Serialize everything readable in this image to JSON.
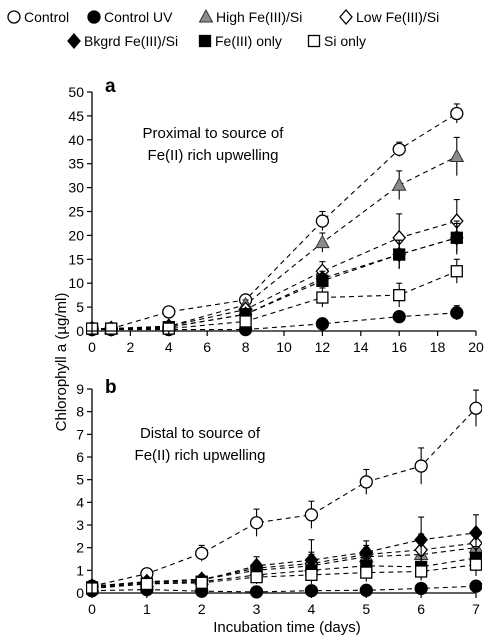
{
  "legend": {
    "entries": [
      {
        "label": "Control",
        "marker": "circle-open",
        "color": "#000000"
      },
      {
        "label": "Control UV",
        "marker": "circle-filled",
        "color": "#000000"
      },
      {
        "label": "High Fe(III)/Si",
        "marker": "triangle-gray",
        "color": "#8c8c8c"
      },
      {
        "label": "Low Fe(III)/Si",
        "marker": "diamond-open",
        "color": "#000000"
      },
      {
        "label": "Bkgrd Fe(III)/Si",
        "marker": "diamond-filled",
        "color": "#000000"
      },
      {
        "label": "Fe(III) only",
        "marker": "square-filled",
        "color": "#000000"
      },
      {
        "label": "Si only",
        "marker": "square-open",
        "color": "#000000"
      }
    ]
  },
  "shared_ylabel": "Chlorophyll a (µg/ml)",
  "chart_data": [
    {
      "type": "line",
      "panel_label": "a",
      "annotation": [
        "Proximal to source of",
        "Fe(II) rich upwelling"
      ],
      "xlabel": "",
      "ylabel": "Chlorophyll a (µg/ml)",
      "xlim": [
        0,
        20
      ],
      "ylim": [
        0,
        50
      ],
      "xticks": [
        "0",
        "2",
        "4",
        "6",
        "8",
        "10",
        "12",
        "14",
        "16",
        "18",
        "20"
      ],
      "yticks": [
        "0",
        "5",
        "10",
        "15",
        "20",
        "25",
        "30",
        "35",
        "40",
        "45",
        "50"
      ],
      "grid": false,
      "line_style": "dashed",
      "series": [
        {
          "name": "Control",
          "x": [
            0,
            1,
            4,
            8,
            12,
            16,
            19
          ],
          "y": [
            0.5,
            0.5,
            4,
            6.5,
            23,
            38,
            45.5
          ],
          "err": [
            0.5,
            0.5,
            1,
            1,
            2,
            1.5,
            2
          ]
        },
        {
          "name": "Control UV",
          "x": [
            0,
            1,
            4,
            8,
            12,
            16,
            19
          ],
          "y": [
            0.3,
            0.3,
            0.3,
            0.3,
            1.5,
            3,
            3.8
          ],
          "err": [
            0.3,
            0.3,
            0.3,
            0.3,
            1,
            1,
            1.5
          ]
        },
        {
          "name": "High Fe(III)/Si",
          "x": [
            0,
            1,
            4,
            8,
            12,
            16,
            19
          ],
          "y": [
            0.5,
            0.5,
            1,
            5.5,
            18.5,
            30.5,
            36.5
          ],
          "err": [
            0.5,
            0.5,
            0.5,
            1,
            2,
            3,
            4
          ]
        },
        {
          "name": "Low Fe(III)/Si",
          "x": [
            0,
            1,
            4,
            8,
            12,
            16,
            19
          ],
          "y": [
            0.5,
            0.5,
            1,
            4.5,
            12.5,
            19.5,
            23
          ],
          "err": [
            0.5,
            0.5,
            0.5,
            1,
            2,
            5,
            4.5
          ]
        },
        {
          "name": "Bkgrd Fe(III)/Si",
          "x": [
            0,
            1,
            4,
            8,
            12,
            16,
            19
          ],
          "y": [
            0.5,
            0.5,
            0.8,
            3.5,
            11,
            16,
            19.5
          ],
          "err": [
            0.5,
            0.5,
            0.5,
            1,
            1.5,
            3,
            3.5
          ]
        },
        {
          "name": "Fe(III) only",
          "x": [
            0,
            1,
            4,
            8,
            12,
            16,
            19
          ],
          "y": [
            0.5,
            0.5,
            0.8,
            3.5,
            10.5,
            16,
            19.5
          ],
          "err": [
            0.5,
            0.5,
            0.5,
            1,
            1.5,
            3,
            3
          ]
        },
        {
          "name": "Si only",
          "x": [
            0,
            1,
            4,
            8,
            12,
            16,
            19
          ],
          "y": [
            0.5,
            0.5,
            0.5,
            2,
            7,
            7.5,
            12.5
          ],
          "err": [
            0.5,
            0.5,
            0.5,
            1,
            2,
            2.5,
            2.5
          ]
        }
      ]
    },
    {
      "type": "line",
      "panel_label": "b",
      "annotation": [
        "Distal to source of",
        "Fe(II) rich upwelling"
      ],
      "xlabel": "Incubation time (days)",
      "ylabel": "Chlorophyll a (µg/ml)",
      "xlim": [
        0,
        7
      ],
      "ylim": [
        0,
        9
      ],
      "xticks": [
        "0",
        "1",
        "2",
        "3",
        "4",
        "5",
        "6",
        "7"
      ],
      "yticks": [
        "0",
        "1",
        "2",
        "3",
        "4",
        "5",
        "6",
        "7",
        "8",
        "9"
      ],
      "grid": false,
      "line_style": "dashed",
      "series": [
        {
          "name": "Control",
          "x": [
            0,
            1,
            2,
            3,
            4,
            5,
            6,
            7
          ],
          "y": [
            0.3,
            0.85,
            1.75,
            3.1,
            3.45,
            4.9,
            5.6,
            8.15
          ],
          "err": [
            0.15,
            0.2,
            0.35,
            0.6,
            0.6,
            0.55,
            0.8,
            0.8
          ]
        },
        {
          "name": "Control UV",
          "x": [
            0,
            1,
            2,
            3,
            4,
            5,
            6,
            7
          ],
          "y": [
            0.1,
            0.15,
            0.08,
            0.05,
            0.1,
            0.12,
            0.2,
            0.3
          ],
          "err": [
            0.1,
            0.1,
            0.08,
            0.05,
            0.1,
            0.1,
            0.15,
            0.2
          ]
        },
        {
          "name": "High Fe(III)/Si",
          "x": [
            0,
            1,
            2,
            3,
            4,
            5,
            6,
            7
          ],
          "y": [
            0.3,
            0.5,
            0.6,
            1.0,
            1.2,
            1.6,
            1.7,
            2.0
          ],
          "err": [
            0.1,
            0.2,
            0.2,
            0.3,
            0.5,
            0.4,
            0.6,
            0.6
          ]
        },
        {
          "name": "Low Fe(III)/Si",
          "x": [
            0,
            1,
            2,
            3,
            4,
            5,
            6,
            7
          ],
          "y": [
            0.3,
            0.5,
            0.6,
            1.1,
            1.3,
            1.7,
            1.9,
            2.2
          ],
          "err": [
            0.1,
            0.2,
            0.2,
            0.3,
            0.5,
            0.4,
            0.7,
            0.6
          ]
        },
        {
          "name": "Bkgrd Fe(III)/Si",
          "x": [
            0,
            1,
            2,
            3,
            4,
            5,
            6,
            7
          ],
          "y": [
            0.3,
            0.45,
            0.55,
            1.2,
            1.45,
            1.8,
            2.35,
            2.65
          ],
          "err": [
            0.1,
            0.2,
            0.2,
            0.4,
            0.9,
            0.5,
            1.0,
            0.8
          ]
        },
        {
          "name": "Fe(III) only",
          "x": [
            0,
            1,
            2,
            3,
            4,
            5,
            6,
            7
          ],
          "y": [
            0.25,
            0.4,
            0.5,
            0.8,
            1.0,
            1.2,
            1.15,
            1.55
          ],
          "err": [
            0.1,
            0.2,
            0.2,
            0.3,
            0.4,
            0.4,
            0.5,
            0.5
          ]
        },
        {
          "name": "Si only",
          "x": [
            0,
            1,
            2,
            3,
            4,
            5,
            6,
            7
          ],
          "y": [
            0.2,
            0.4,
            0.45,
            0.7,
            0.8,
            0.9,
            0.95,
            1.25
          ],
          "err": [
            0.1,
            0.2,
            0.2,
            0.3,
            0.4,
            0.4,
            0.4,
            0.5
          ]
        }
      ]
    }
  ]
}
